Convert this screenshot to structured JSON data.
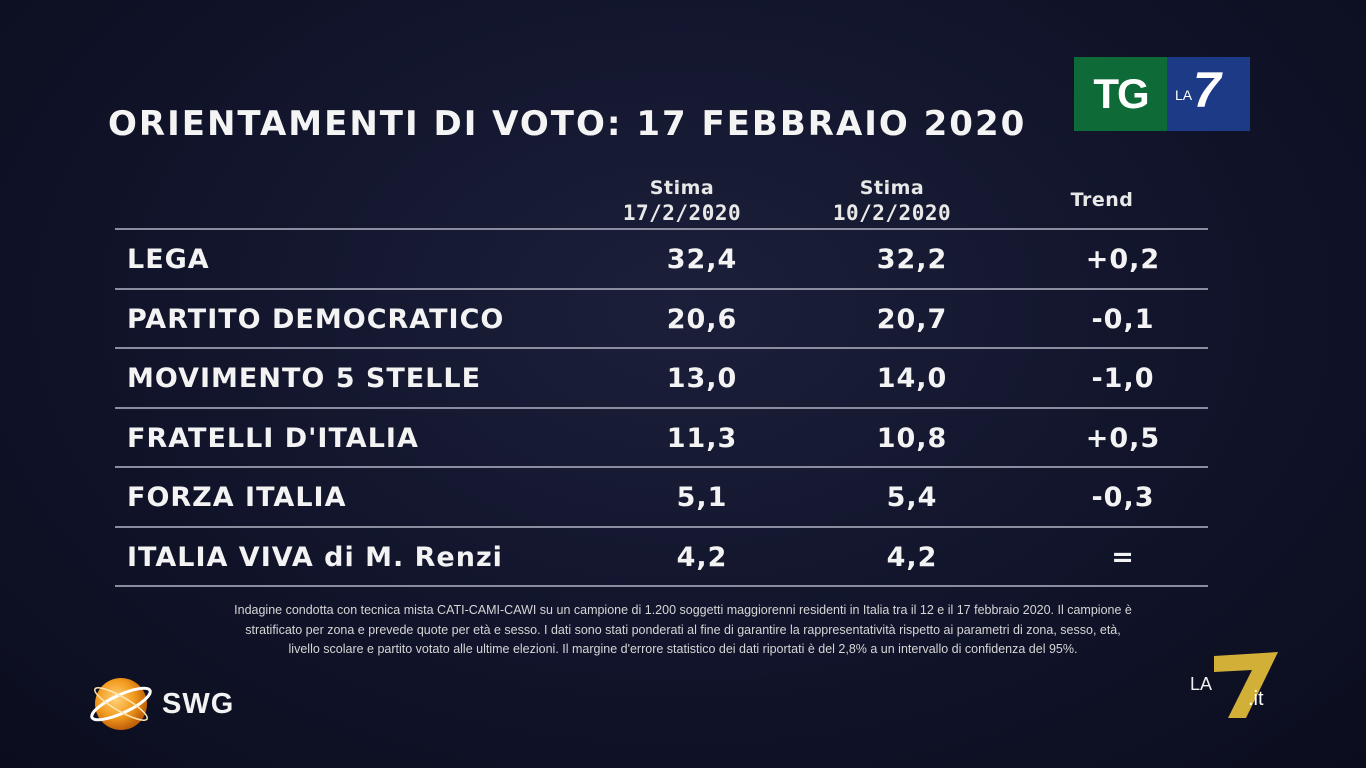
{
  "title": "ORIENTAMENTI DI VOTO: 17 FEBBRAIO 2020",
  "logo_tg": {
    "tg": "TG",
    "la": "LA",
    "seven": "7"
  },
  "columns": {
    "c1": {
      "label": "Stima",
      "date": "17/2/2020"
    },
    "c2": {
      "label": "Stima",
      "date": "10/2/2020"
    },
    "c3": {
      "label": "Trend"
    }
  },
  "rows": [
    {
      "party": "LEGA",
      "v1": "32,4",
      "v2": "32,2",
      "trend": "+0,2"
    },
    {
      "party": "PARTITO DEMOCRATICO",
      "v1": "20,6",
      "v2": "20,7",
      "trend": "-0,1"
    },
    {
      "party": "MOVIMENTO 5 STELLE",
      "v1": "13,0",
      "v2": "14,0",
      "trend": "-1,0"
    },
    {
      "party": "FRATELLI D'ITALIA",
      "v1": "11,3",
      "v2": "10,8",
      "trend": "+0,5"
    },
    {
      "party": "FORZA ITALIA",
      "v1": "5,1",
      "v2": "5,4",
      "trend": "-0,3"
    },
    {
      "party": "ITALIA VIVA di M. Renzi",
      "v1": "4,2",
      "v2": "4,2",
      "trend": "="
    }
  ],
  "note": {
    "line1": "Indagine condotta con tecnica mista CATI-CAMI-CAWI su un campione di 1.200 soggetti maggiorenni residenti in Italia tra il 12 e il 17 febbraio 2020. Il campione è",
    "line2": "stratificato per zona e prevede quote per età e sesso. I dati sono stati ponderati al fine di garantire la rappresentatività rispetto ai parametri di zona, sesso, età,",
    "line3": "livello scolare e partito votato alle ultime elezioni. Il margine d'errore statistico dei dati riportati è del 2,8% a un intervallo di confidenza del 95%."
  },
  "swg": {
    "name": "SWG"
  },
  "la7it": {
    "la": "LA",
    "seven": "7",
    "it": ".it"
  },
  "colors": {
    "background": "#11142a",
    "tg_green": "#0e6b37",
    "tg_blue": "#1c3a85",
    "la7_yellow": "#e8c23a"
  }
}
